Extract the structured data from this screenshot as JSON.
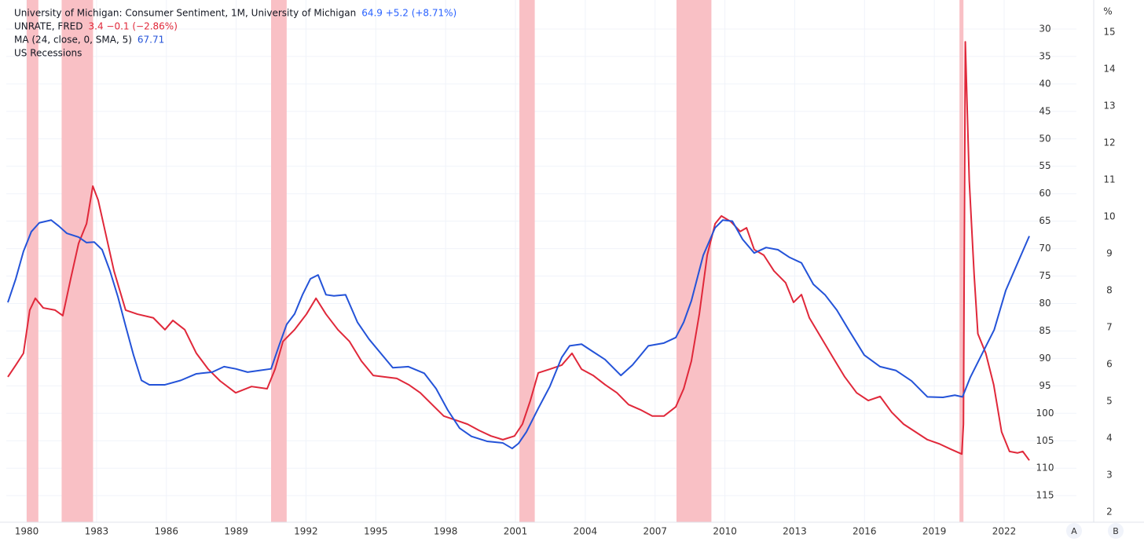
{
  "chart_data": {
    "type": "line",
    "legend": [
      {
        "text": "University of Michigan: Consumer Sentiment, 1M, University of Michigan",
        "readout": "64.9  +5.2 (+8.71%)",
        "color": "#2962ff"
      }
    ],
    "recessions": {
      "name": "US Recessions",
      "color": "#f9c0c5",
      "ranges": [
        [
          1980.0,
          1980.5
        ],
        [
          1981.5,
          1982.85
        ],
        [
          1990.5,
          1991.17
        ],
        [
          2001.17,
          2001.83
        ],
        [
          2007.92,
          2009.42
        ],
        [
          2020.08,
          2020.25
        ]
      ]
    },
    "xlim": [
      1979.122,
      2025.105
    ],
    "xticks": [
      1980,
      1983,
      1986,
      1989,
      1992,
      1995,
      1998,
      2001,
      2004,
      2007,
      2010,
      2013,
      2016,
      2019,
      2022
    ],
    "ylim": [
      119.84,
      24.71
    ],
    "yticks": [
      30,
      35,
      40,
      45,
      50,
      55,
      60,
      65,
      70,
      75,
      80,
      85,
      90,
      95,
      100,
      105,
      110,
      115
    ],
    "y2lim": [
      1.723,
      15.872
    ],
    "y2ticks": [
      2,
      3,
      4,
      5,
      6,
      7,
      8,
      9,
      10,
      11,
      12,
      13,
      14,
      15
    ],
    "y2_unit": "%",
    "grid": true,
    "scale_buttons": [
      "A",
      "B"
    ],
    "series": [
      {
        "name": "UNRATE, FRED",
        "readout": "3.4  −0.1 (−2.86%)",
        "color": "#e0283a",
        "axis": "y2",
        "x": [
          1979.19,
          1979.53,
          1979.86,
          1980.13,
          1980.37,
          1980.71,
          1981.22,
          1981.55,
          1981.89,
          1982.23,
          1982.57,
          1982.84,
          1983.07,
          1983.41,
          1983.75,
          1984.25,
          1984.76,
          1985.44,
          1985.94,
          1986.28,
          1986.79,
          1987.29,
          1987.8,
          1988.31,
          1988.98,
          1989.66,
          1990.33,
          1990.67,
          1991.01,
          1991.51,
          1992.02,
          1992.43,
          1992.86,
          1993.37,
          1993.87,
          1994.38,
          1994.89,
          1995.39,
          1995.9,
          1996.41,
          1996.91,
          1997.42,
          1997.92,
          1998.43,
          1998.94,
          1999.44,
          1999.95,
          2000.46,
          2000.96,
          2001.3,
          2001.64,
          2001.98,
          2002.48,
          2002.99,
          2003.43,
          2003.84,
          2004.34,
          2004.85,
          2005.36,
          2005.86,
          2006.37,
          2006.88,
          2007.38,
          2007.89,
          2008.23,
          2008.56,
          2008.9,
          2009.24,
          2009.58,
          2009.85,
          2010.25,
          2010.66,
          2010.93,
          2011.26,
          2011.67,
          2012.11,
          2012.61,
          2012.95,
          2013.29,
          2013.63,
          2014.14,
          2014.64,
          2015.15,
          2015.66,
          2016.16,
          2016.67,
          2017.17,
          2017.68,
          2018.19,
          2018.7,
          2019.2,
          2019.71,
          2020.18,
          2020.25,
          2020.33,
          2020.5,
          2020.71,
          2020.87,
          2021.21,
          2021.55,
          2021.89,
          2022.23,
          2022.57,
          2022.8,
          2023.08
        ],
        "values": [
          5.66,
          5.98,
          6.3,
          7.47,
          7.79,
          7.53,
          7.47,
          7.32,
          8.32,
          9.28,
          9.81,
          10.83,
          10.45,
          9.49,
          8.53,
          7.47,
          7.36,
          7.26,
          6.94,
          7.19,
          6.94,
          6.3,
          5.87,
          5.55,
          5.23,
          5.4,
          5.34,
          5.87,
          6.62,
          6.94,
          7.36,
          7.79,
          7.36,
          6.94,
          6.62,
          6.09,
          5.7,
          5.66,
          5.62,
          5.45,
          5.23,
          4.91,
          4.6,
          4.49,
          4.38,
          4.21,
          4.06,
          3.96,
          4.06,
          4.38,
          5.02,
          5.77,
          5.87,
          5.98,
          6.3,
          5.87,
          5.7,
          5.45,
          5.23,
          4.91,
          4.77,
          4.6,
          4.6,
          4.85,
          5.34,
          6.09,
          7.36,
          8.96,
          9.81,
          10.02,
          9.87,
          9.6,
          9.7,
          9.11,
          8.96,
          8.53,
          8.21,
          7.68,
          7.89,
          7.26,
          6.72,
          6.19,
          5.66,
          5.23,
          5.02,
          5.13,
          4.7,
          4.38,
          4.17,
          3.96,
          3.85,
          3.7,
          3.57,
          4.38,
          14.74,
          10.98,
          8.43,
          6.83,
          6.3,
          5.45,
          4.17,
          3.64,
          3.6,
          3.64,
          3.4
        ]
      },
      {
        "name": "MA (24, close, 0, SMA, 5)",
        "readout": "67.71",
        "color": "#2453d8",
        "axis": "y",
        "x": [
          1979.19,
          1979.53,
          1979.86,
          1980.2,
          1980.54,
          1981.05,
          1981.38,
          1981.72,
          1982.23,
          1982.57,
          1982.9,
          1983.24,
          1983.58,
          1983.92,
          1984.25,
          1984.59,
          1984.93,
          1985.27,
          1985.94,
          1986.62,
          1987.29,
          1987.97,
          1988.48,
          1988.98,
          1989.49,
          1990.0,
          1990.5,
          1990.84,
          1991.17,
          1991.51,
          1991.85,
          1992.19,
          1992.52,
          1992.86,
          1993.2,
          1993.7,
          1994.21,
          1994.71,
          1995.22,
          1995.73,
          1996.4,
          1997.08,
          1997.59,
          1998.09,
          1998.6,
          1999.11,
          1999.78,
          2000.46,
          2000.86,
          2001.13,
          2001.47,
          2001.98,
          2002.48,
          2002.99,
          2003.33,
          2003.84,
          2004.34,
          2004.85,
          2005.53,
          2006.03,
          2006.71,
          2007.38,
          2007.89,
          2008.23,
          2008.56,
          2009.07,
          2009.58,
          2009.91,
          2010.32,
          2010.76,
          2011.26,
          2011.77,
          2012.28,
          2012.78,
          2013.29,
          2013.8,
          2014.3,
          2014.81,
          2015.32,
          2015.99,
          2016.67,
          2017.35,
          2018.02,
          2018.7,
          2019.37,
          2019.88,
          2020.21,
          2020.55,
          2021.06,
          2021.57,
          2022.07,
          2022.58,
          2023.08
        ],
        "values": [
          79.8,
          75.5,
          70.5,
          66.9,
          65.3,
          64.8,
          65.9,
          67.2,
          67.9,
          68.9,
          68.8,
          70.2,
          74.1,
          78.8,
          84.1,
          89.4,
          94,
          94.8,
          94.8,
          94,
          92.8,
          92.5,
          91.5,
          91.9,
          92.5,
          92.2,
          91.9,
          87.7,
          83.8,
          81.9,
          78.4,
          75.5,
          74.8,
          78.4,
          78.6,
          78.4,
          83.4,
          86.5,
          89.1,
          91.7,
          91.5,
          92.7,
          95.5,
          99.4,
          102.7,
          104.2,
          105.1,
          105.4,
          106.4,
          105.5,
          103.4,
          99.1,
          95.1,
          89.8,
          87.7,
          87.4,
          88.8,
          90.2,
          93.1,
          91.2,
          87.7,
          87.2,
          86.2,
          83.4,
          79.5,
          71.2,
          66.2,
          64.8,
          65,
          68.3,
          70.8,
          69.8,
          70.2,
          71.6,
          72.6,
          76.5,
          78.4,
          81.2,
          84.8,
          89.4,
          91.5,
          92.2,
          94.1,
          97,
          97.1,
          96.7,
          97,
          93.4,
          89.1,
          84.8,
          77.6,
          72.6,
          67.71
        ]
      }
    ]
  }
}
